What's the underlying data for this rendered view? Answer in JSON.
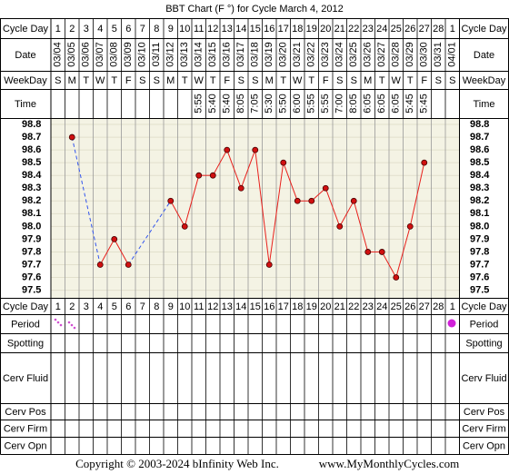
{
  "chart_data": {
    "type": "line",
    "title": "BBT Chart (F °) for Cycle March 4, 2012",
    "row_labels": {
      "cycle_day": "Cycle Day",
      "date": "Date",
      "weekday": "WeekDay",
      "time": "Time",
      "period": "Period",
      "spotting": "Spotting",
      "cerv_fluid": "Cerv Fluid",
      "cerv_pos": "Cerv Pos",
      "cerv_firm": "Cerv Firm",
      "cerv_opn": "Cerv Opn"
    },
    "cycle_days": [
      1,
      2,
      3,
      4,
      5,
      6,
      7,
      8,
      9,
      10,
      11,
      12,
      13,
      14,
      15,
      16,
      17,
      18,
      19,
      20,
      21,
      22,
      23,
      24,
      25,
      26,
      27,
      28,
      1
    ],
    "dates": [
      "03/04",
      "03/05",
      "03/06",
      "03/07",
      "03/08",
      "03/09",
      "03/10",
      "03/11",
      "03/12",
      "03/13",
      "03/14",
      "03/15",
      "03/16",
      "03/17",
      "03/18",
      "03/19",
      "03/20",
      "03/21",
      "03/22",
      "03/23",
      "03/24",
      "03/25",
      "03/26",
      "03/27",
      "03/28",
      "03/29",
      "03/30",
      "03/31",
      "04/01"
    ],
    "weekdays": [
      "S",
      "M",
      "T",
      "W",
      "T",
      "F",
      "S",
      "S",
      "M",
      "T",
      "W",
      "T",
      "F",
      "S",
      "S",
      "M",
      "T",
      "W",
      "T",
      "F",
      "S",
      "S",
      "M",
      "T",
      "W",
      "T",
      "F",
      "S",
      "S"
    ],
    "times": [
      null,
      null,
      null,
      null,
      null,
      null,
      null,
      null,
      null,
      null,
      "5:55",
      "5:40",
      "5:40",
      "8:05",
      "7:05",
      "5:30",
      "5:50",
      "6:00",
      "5:55",
      "5:55",
      "7:00",
      "8:05",
      "6:05",
      "6:05",
      "6:05",
      "5:45",
      "5:45",
      null,
      null
    ],
    "series": [
      {
        "name": "Temperature",
        "color": "#e8201c",
        "values": [
          null,
          98.7,
          null,
          97.7,
          97.9,
          97.7,
          null,
          null,
          98.2,
          98.0,
          98.4,
          98.4,
          98.6,
          98.3,
          98.6,
          97.7,
          98.5,
          98.2,
          98.2,
          98.3,
          98.0,
          98.2,
          97.8,
          97.8,
          97.6,
          98.0,
          98.5,
          null,
          null
        ]
      }
    ],
    "ylim": [
      97.44,
      98.85
    ],
    "yticks": [
      98.8,
      98.7,
      98.6,
      98.5,
      98.4,
      98.3,
      98.2,
      98.1,
      {
        "value": 98.0,
        "label": "98.0"
      },
      97.9,
      97.8,
      97.7,
      97.6,
      97.5
    ],
    "footer": {
      "copyright": "Copyright © 2003-2024 bInfinity Web Inc.",
      "site": "www.MyMonthlyCycles.com"
    }
  }
}
